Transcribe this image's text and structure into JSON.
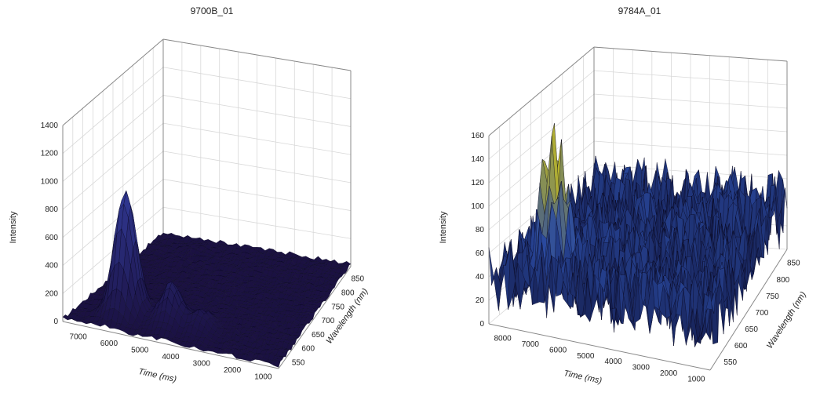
{
  "chart_data": [
    {
      "type": "surface3d",
      "title": "9700B_01",
      "zlabel": "Intensity",
      "xlabel": "Time (ms)",
      "ylabel": "Wavelength (nm)",
      "z_ticks": [
        "0",
        "200",
        "400",
        "600",
        "800",
        "1000",
        "1200",
        "1400"
      ],
      "x_ticks": [
        "7000",
        "6000",
        "5000",
        "4000",
        "3000",
        "2000",
        "1000"
      ],
      "y_ticks": [
        "550",
        "600",
        "650",
        "700",
        "750",
        "800",
        "850"
      ],
      "zlim": [
        0,
        1400
      ],
      "xlim": [
        1000,
        8000
      ],
      "ylim": [
        500,
        900
      ],
      "grid": true,
      "peaks": [
        {
          "time": 6500,
          "wavelength": 830,
          "intensity": 900
        },
        {
          "time": 5000,
          "wavelength": 830,
          "intensity": 300
        },
        {
          "time": 4000,
          "wavelength": 830,
          "intensity": 150
        }
      ],
      "baseline": 20,
      "noise": 15,
      "colors": {
        "low": "#1a1040",
        "high": "#3a4ab8"
      }
    },
    {
      "type": "surface3d",
      "title": "9784A_01",
      "zlabel": "Intensity",
      "xlabel": "Time (ms)",
      "ylabel": "Wavelength (nm)",
      "z_ticks": [
        "0",
        "20",
        "40",
        "60",
        "80",
        "100",
        "120",
        "140",
        "160"
      ],
      "x_ticks": [
        "8000",
        "7000",
        "6000",
        "5000",
        "4000",
        "3000",
        "2000",
        "1000"
      ],
      "y_ticks": [
        "550",
        "600",
        "650",
        "700",
        "750",
        "800",
        "850"
      ],
      "zlim": [
        0,
        160
      ],
      "xlim": [
        1000,
        8000
      ],
      "ylim": [
        500,
        900
      ],
      "grid": true,
      "peaks": [
        {
          "time": 6500,
          "wavelength": 830,
          "intensity": 145
        }
      ],
      "baseline": 40,
      "noise": 30,
      "colors": {
        "low": "#0d0d30",
        "mid": "#2a4aa0",
        "high": "#c8c020"
      }
    }
  ]
}
